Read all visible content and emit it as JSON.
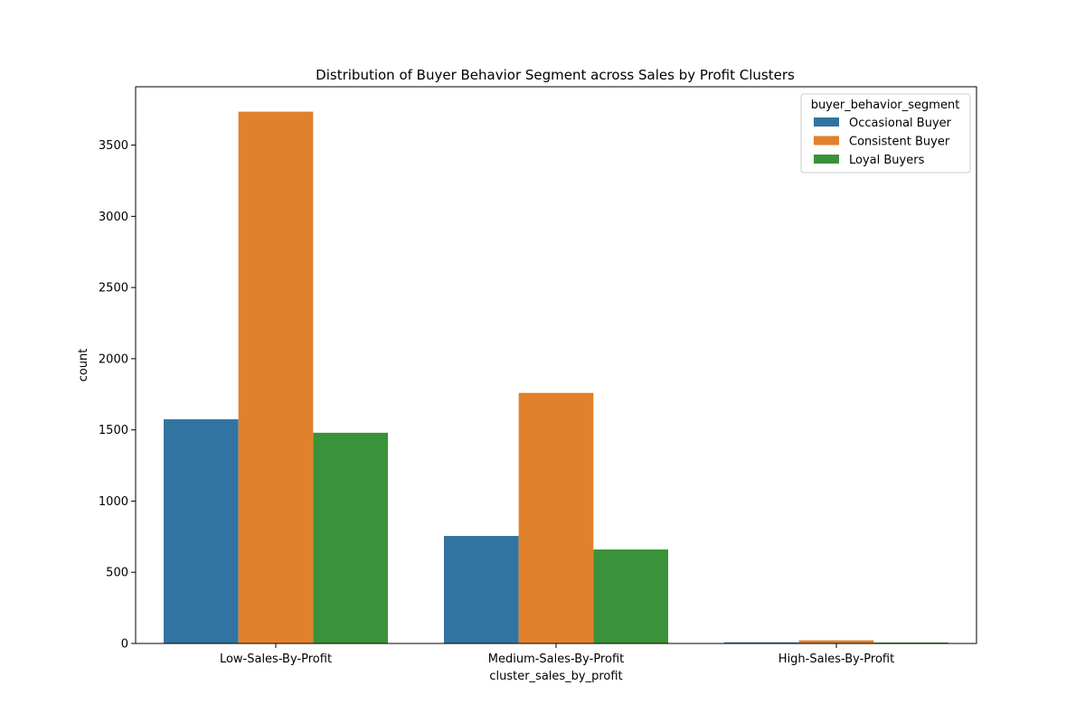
{
  "chart_data": {
    "type": "bar",
    "title": "Distribution of Buyer Behavior Segment across Sales by Profit Clusters",
    "xlabel": "cluster_sales_by_profit",
    "ylabel": "count",
    "categories": [
      "Low-Sales-By-Profit",
      "Medium-Sales-By-Profit",
      "High-Sales-By-Profit"
    ],
    "series": [
      {
        "name": "Occasional Buyer",
        "color": "#3274a1",
        "values": [
          1575,
          755,
          8
        ]
      },
      {
        "name": "Consistent Buyer",
        "color": "#e1812c",
        "values": [
          3735,
          1760,
          22
        ]
      },
      {
        "name": "Loyal Buyers",
        "color": "#3a923a",
        "values": [
          1480,
          660,
          7
        ]
      }
    ],
    "ylim": [
      0,
      3910
    ],
    "yticks": [
      0,
      500,
      1000,
      1500,
      2000,
      2500,
      3000,
      3500
    ],
    "legend": {
      "title": "buyer_behavior_segment",
      "placement": "top-right"
    },
    "grid": false
  }
}
